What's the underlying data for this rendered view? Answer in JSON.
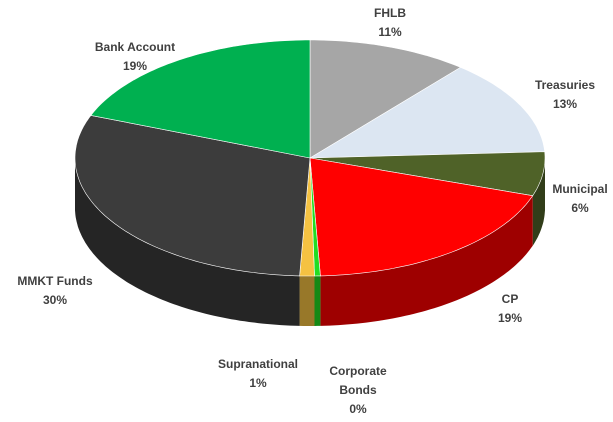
{
  "chart_data": {
    "type": "pie3d",
    "categories": [
      "FHLB",
      "Treasuries",
      "Municipal",
      "CP",
      "Corporate Bonds",
      "Supranational",
      "MMKT Funds",
      "Bank Account"
    ],
    "values": [
      11,
      13,
      6,
      19,
      0.4,
      1,
      30,
      19
    ],
    "value_labels": [
      "11%",
      "13%",
      "6%",
      "19%",
      "0%",
      "1%",
      "30%",
      "19%"
    ],
    "colors": [
      "#a6a6a6",
      "#dce6f2",
      "#4f6228",
      "#ff0000",
      "#22dd22",
      "#f5c242",
      "#3c3c3c",
      "#00b050"
    ]
  }
}
